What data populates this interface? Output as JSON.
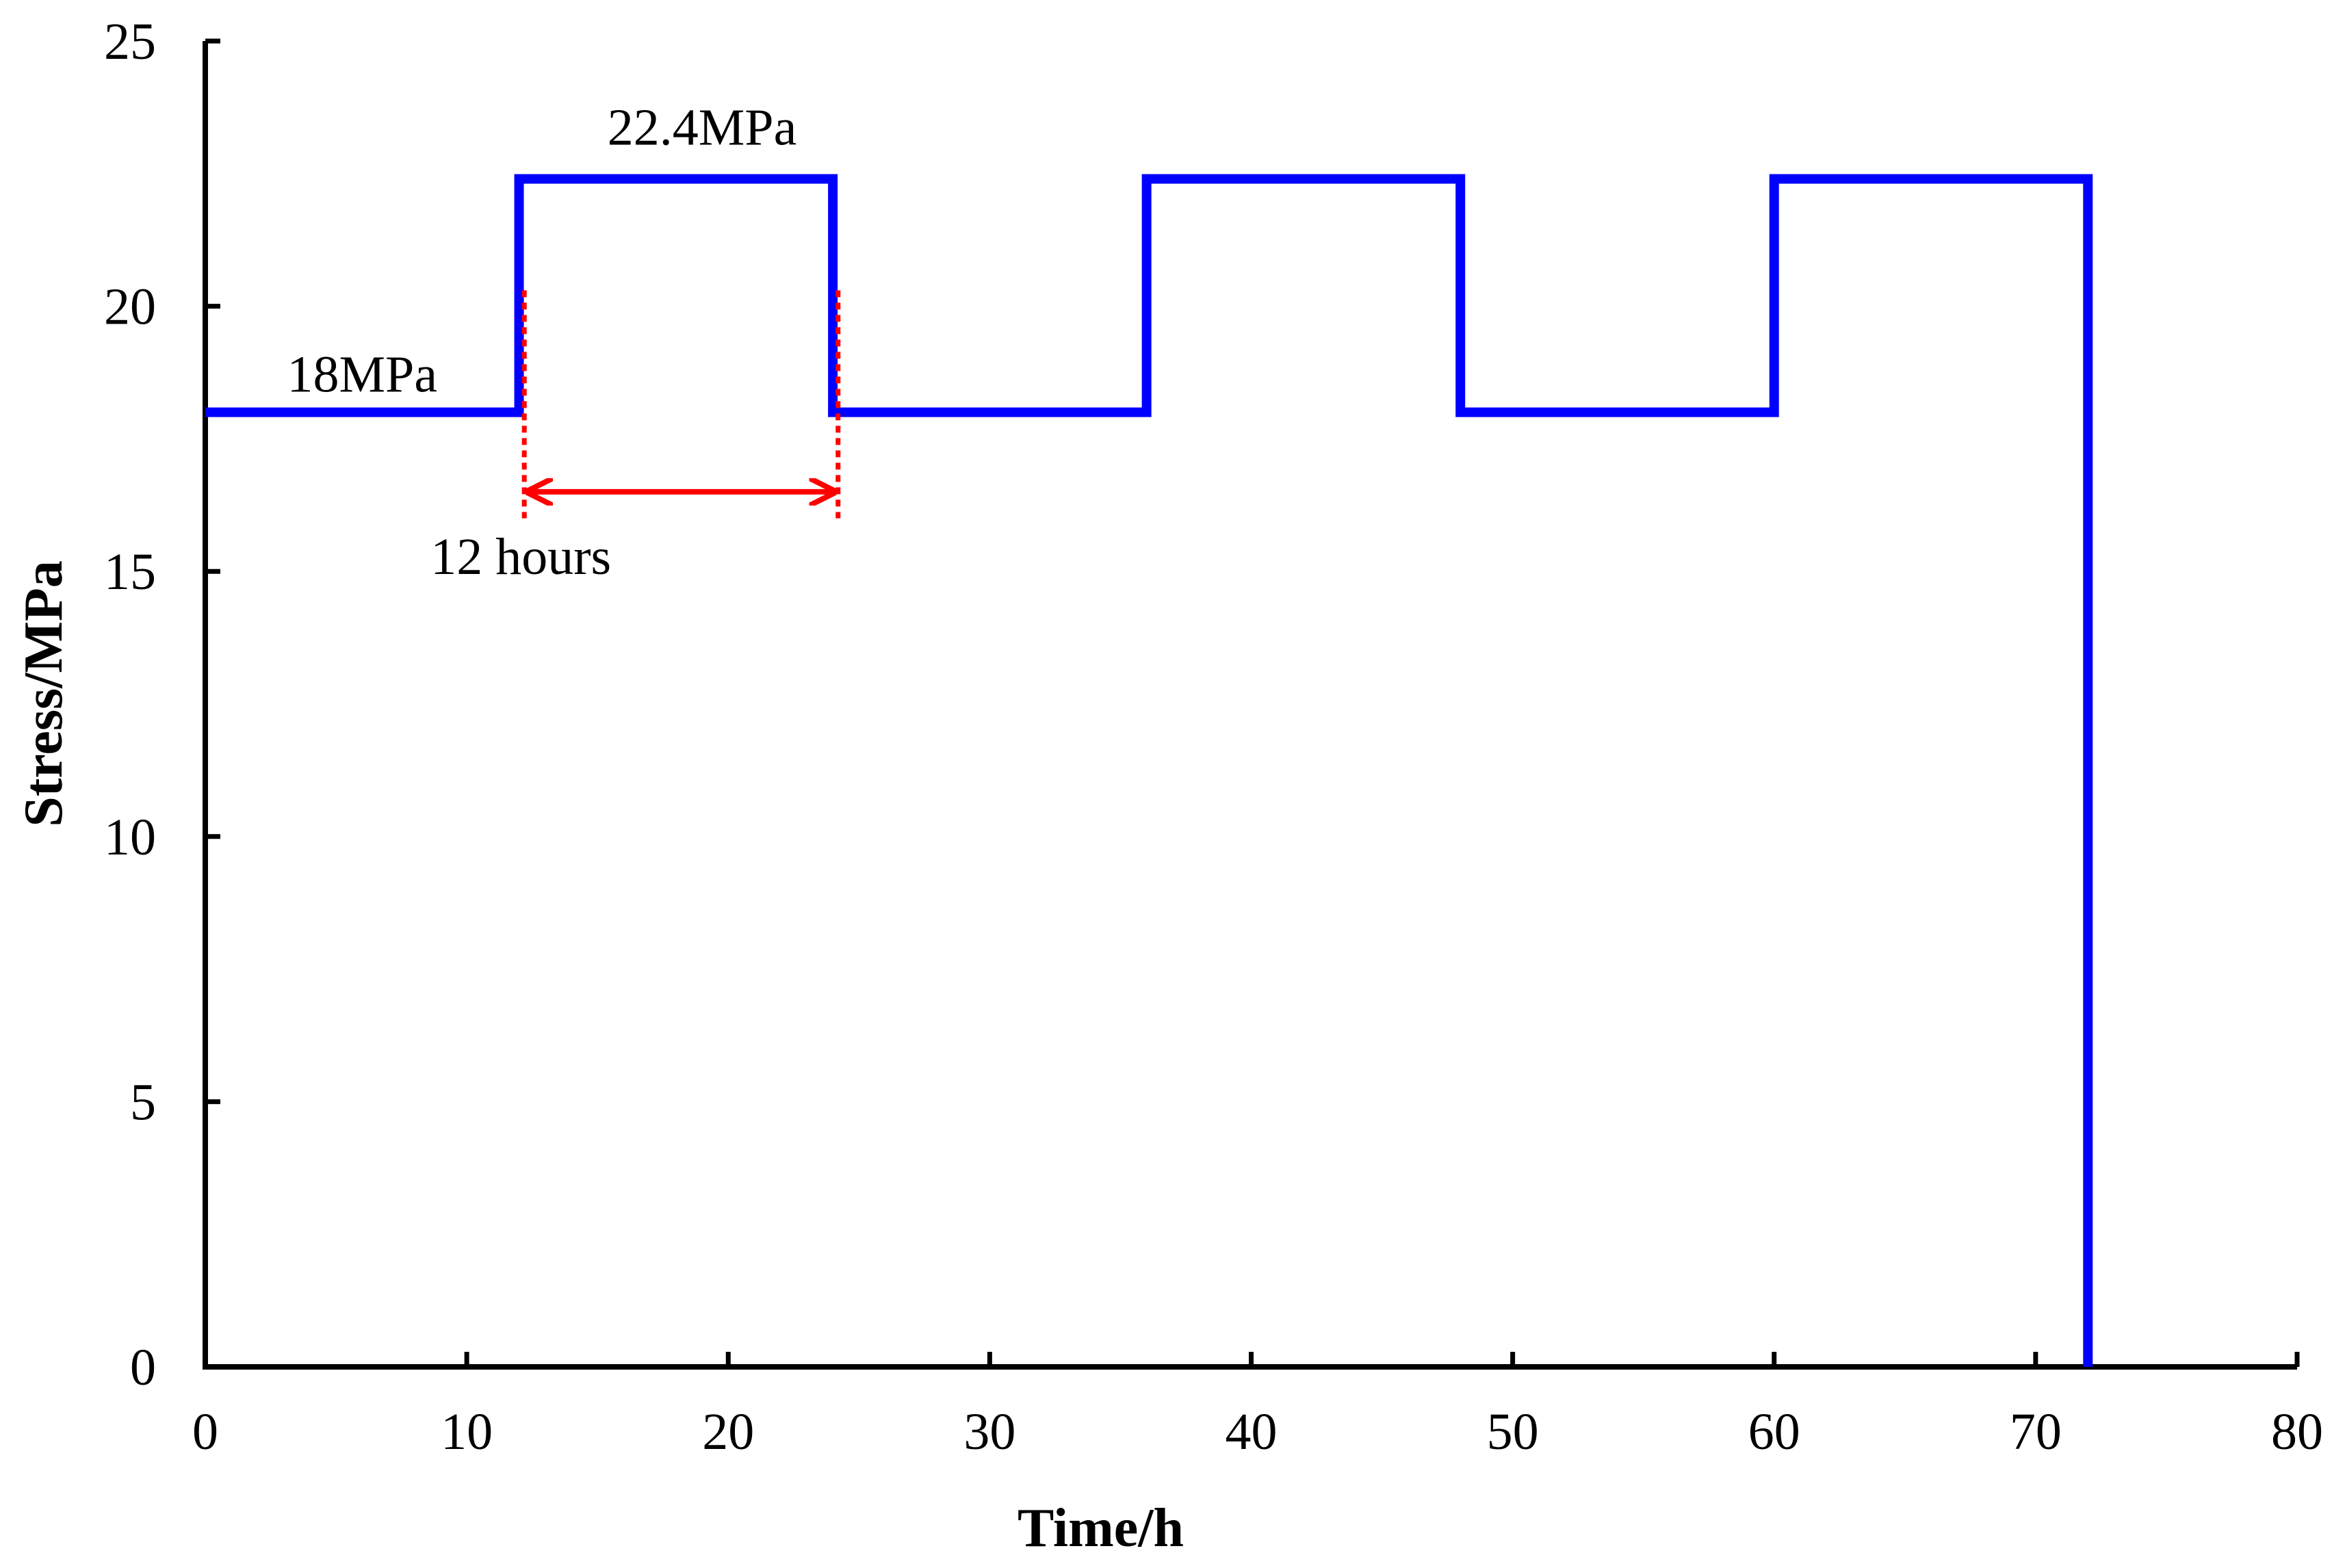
{
  "chart_data": {
    "type": "line",
    "step": true,
    "title": "",
    "xlabel": "Time/h",
    "ylabel": "Stress/MPa",
    "xlim": [
      0,
      80
    ],
    "ylim": [
      0,
      25
    ],
    "xticks": [
      0,
      10,
      20,
      30,
      40,
      50,
      60,
      70,
      80
    ],
    "yticks": [
      0,
      5,
      10,
      15,
      20,
      25
    ],
    "xtick_labels": [
      "0",
      "10",
      "20",
      "30",
      "40",
      "50",
      "60",
      "70",
      "80"
    ],
    "ytick_labels": [
      "0",
      "5",
      "10",
      "15",
      "20",
      "25"
    ],
    "grid": false,
    "series": [
      {
        "name": "Stress",
        "color": "#0000ff",
        "x": [
          0,
          12,
          12,
          24,
          24,
          36,
          36,
          48,
          48,
          60,
          60,
          72,
          72
        ],
        "y": [
          18,
          18,
          22.4,
          22.4,
          18,
          18,
          22.4,
          22.4,
          18,
          18,
          22.4,
          22.4,
          0
        ]
      }
    ],
    "annotations": {
      "low_label": {
        "text": "18MPa",
        "x": 6,
        "y": 18
      },
      "high_label": {
        "text": "22.4MPa",
        "x": 19,
        "y": 22.4
      },
      "period": {
        "text": "12 hours",
        "color": "#ff0000",
        "x_start": 12.2,
        "x_end": 24.2,
        "y_arrow": 16.5,
        "y_line_top": 20.3,
        "y_line_bottom": 16
      }
    }
  }
}
